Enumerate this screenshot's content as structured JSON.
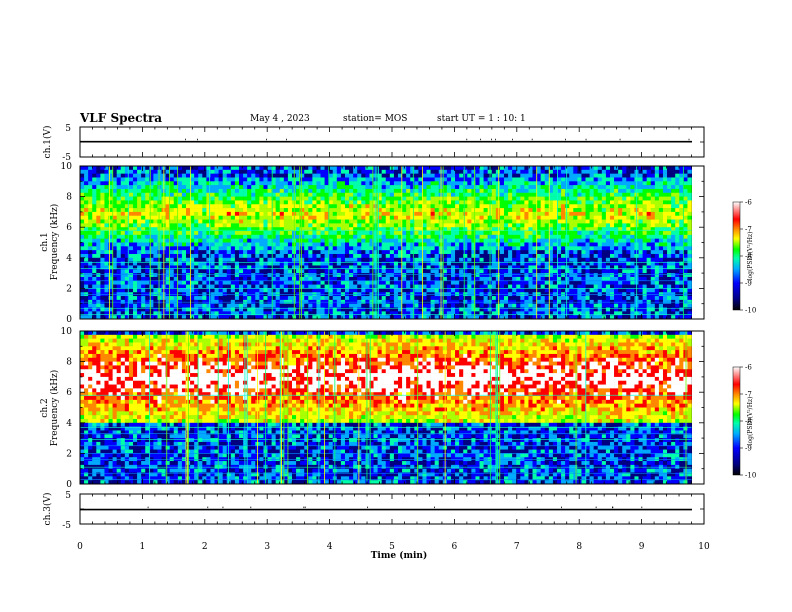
{
  "header": {
    "title": "VLF Spectra",
    "date": "May 4 , 2023",
    "station": "station= MOS",
    "start_ut": "start UT =  1 : 10: 1"
  },
  "chart_data": [
    {
      "type": "line",
      "panel": "ch1-waveform",
      "ylabel": "ch.1(V)",
      "ylim": [
        -5,
        5
      ],
      "y_ticks": [
        "5",
        "-5"
      ],
      "x": [
        0,
        10
      ],
      "values": [
        0.1,
        0.1
      ]
    },
    {
      "type": "heatmap",
      "panel": "ch1-spectrogram",
      "ylabel_line1": "ch.1",
      "ylabel_line2": "Frequency (kHz)",
      "ylim": [
        0,
        10
      ],
      "y_ticks": [
        "0",
        "2",
        "4",
        "6",
        "8",
        "10"
      ],
      "xlim": [
        0,
        9.8
      ],
      "colorbar": {
        "label": "log(PSD)(V²/Hz)",
        "range": [
          -10,
          -6
        ],
        "ticks": [
          "-6",
          "-7",
          "-8",
          "-9",
          "-10"
        ]
      },
      "band_top_khz": 9.2,
      "band_bottom_khz": 4.5,
      "mean_logpsd": -8.2
    },
    {
      "type": "heatmap",
      "panel": "ch2-spectrogram",
      "ylabel_line1": "ch.2",
      "ylabel_line2": "Frequency (kHz)",
      "ylim": [
        0,
        10
      ],
      "y_ticks": [
        "0",
        "2",
        "4",
        "6",
        "8",
        "10"
      ],
      "xlim": [
        0,
        9.8
      ],
      "colorbar": {
        "label": "log(PSD)(V²/Hz)",
        "range": [
          -10,
          -6
        ],
        "ticks": [
          "-6",
          "-7",
          "-8",
          "-9",
          "-10"
        ]
      },
      "band_top_khz": 9.8,
      "band_bottom_khz": 4.0,
      "mean_logpsd": -7.0
    },
    {
      "type": "line",
      "panel": "ch3-waveform",
      "ylabel": "ch.3(V)",
      "ylim": [
        -5,
        5
      ],
      "y_ticks": [
        "5",
        "-5"
      ],
      "x": [
        0,
        10
      ],
      "values": [
        -0.2,
        -0.2
      ]
    }
  ],
  "x_axis": {
    "label": "Time (min)",
    "ticks": [
      "0",
      "1",
      "2",
      "3",
      "4",
      "5",
      "6",
      "7",
      "8",
      "9",
      "10"
    ],
    "range": [
      0,
      10
    ]
  },
  "colors": {
    "frame": "#000000",
    "background_spec": "#000010",
    "colormap": [
      "#000000",
      "#000080",
      "#0000ff",
      "#00aaff",
      "#00ffaa",
      "#00ff00",
      "#aaff00",
      "#ffff00",
      "#ff8800",
      "#ff0000",
      "#ffffff"
    ]
  }
}
